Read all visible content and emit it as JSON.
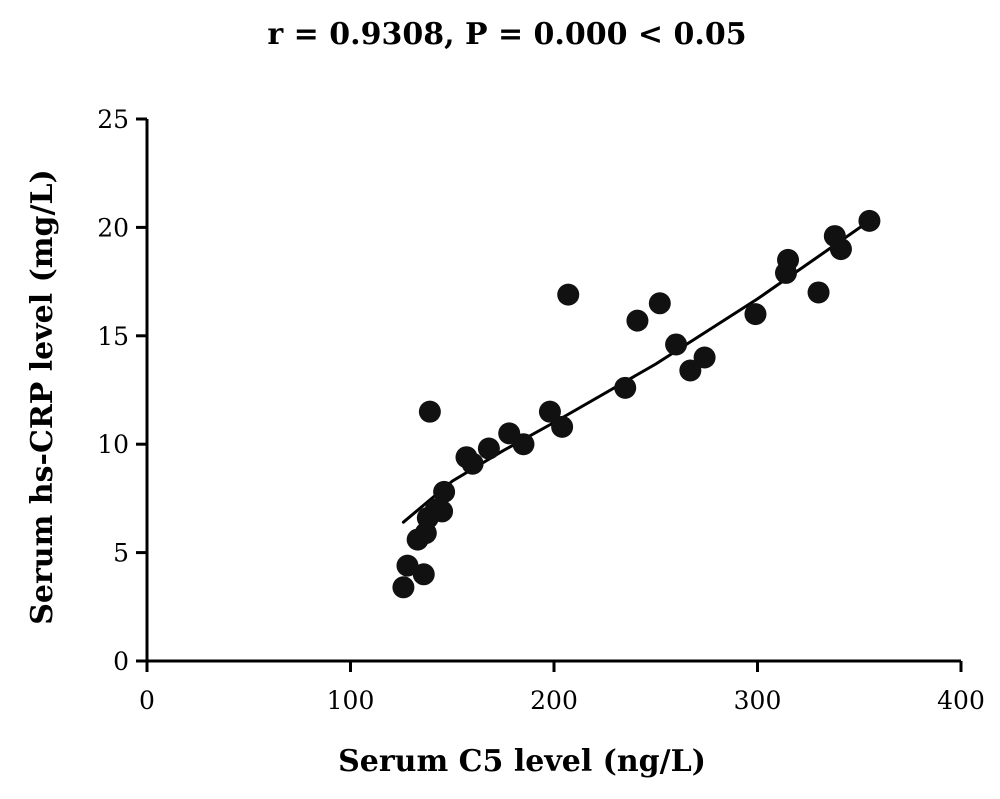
{
  "chart_data": {
    "type": "scatter",
    "title": "r = 0.9308, P = 0.000 < 0.05",
    "xlabel": "Serum C5 level (ng/L)",
    "ylabel": "Serum hs-CRP level (mg/L)",
    "xlim": [
      0,
      400
    ],
    "ylim": [
      0,
      25
    ],
    "xticks": [
      0,
      100,
      200,
      300,
      400
    ],
    "yticks": [
      0,
      5,
      10,
      15,
      20,
      25
    ],
    "grid": false,
    "legend": "none",
    "marker_color": "#111111",
    "points": [
      {
        "x": 126,
        "y": 3.4
      },
      {
        "x": 128,
        "y": 4.4
      },
      {
        "x": 133,
        "y": 5.6
      },
      {
        "x": 136,
        "y": 4.0
      },
      {
        "x": 137,
        "y": 5.9
      },
      {
        "x": 138,
        "y": 6.6
      },
      {
        "x": 139,
        "y": 11.5
      },
      {
        "x": 142,
        "y": 7.0
      },
      {
        "x": 145,
        "y": 6.9
      },
      {
        "x": 146,
        "y": 7.8
      },
      {
        "x": 157,
        "y": 9.4
      },
      {
        "x": 160,
        "y": 9.1
      },
      {
        "x": 168,
        "y": 9.8
      },
      {
        "x": 178,
        "y": 10.5
      },
      {
        "x": 185,
        "y": 10.0
      },
      {
        "x": 198,
        "y": 11.5
      },
      {
        "x": 204,
        "y": 10.8
      },
      {
        "x": 207,
        "y": 16.9
      },
      {
        "x": 235,
        "y": 12.6
      },
      {
        "x": 241,
        "y": 15.7
      },
      {
        "x": 252,
        "y": 16.5
      },
      {
        "x": 260,
        "y": 14.6
      },
      {
        "x": 267,
        "y": 13.4
      },
      {
        "x": 274,
        "y": 14.0
      },
      {
        "x": 299,
        "y": 16.0
      },
      {
        "x": 314,
        "y": 17.9
      },
      {
        "x": 315,
        "y": 18.5
      },
      {
        "x": 330,
        "y": 17.0
      },
      {
        "x": 338,
        "y": 19.6
      },
      {
        "x": 341,
        "y": 19.0
      },
      {
        "x": 355,
        "y": 20.3
      }
    ],
    "trendline": [
      {
        "x": 126,
        "y": 6.4
      },
      {
        "x": 150,
        "y": 8.3
      },
      {
        "x": 175,
        "y": 9.7
      },
      {
        "x": 200,
        "y": 11.0
      },
      {
        "x": 250,
        "y": 13.7
      },
      {
        "x": 300,
        "y": 16.7
      },
      {
        "x": 355,
        "y": 20.3
      }
    ]
  }
}
